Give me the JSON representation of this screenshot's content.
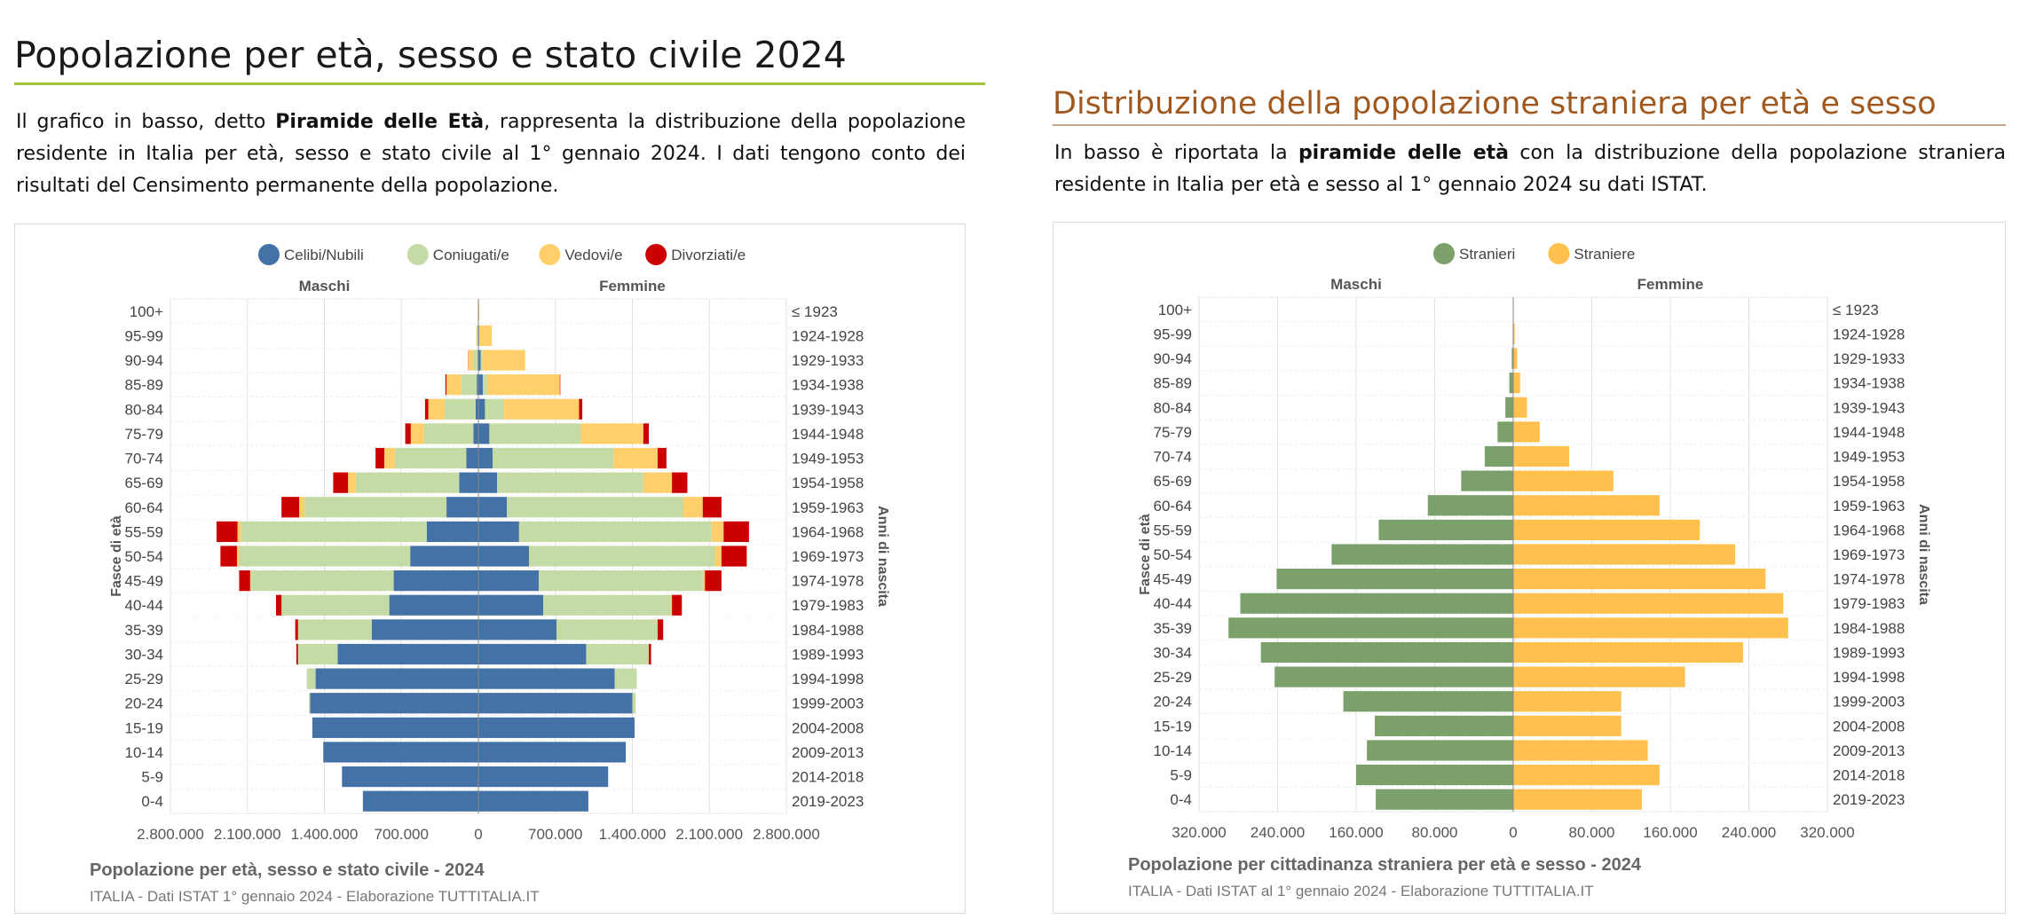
{
  "left": {
    "heading": "Popolazione per età, sesso e stato civile 2024",
    "intro": {
      "t1": "Il grafico in basso, detto ",
      "b1": "Piramide delle Età",
      "t2": ", rappresenta la distribuzione della popolazione residente in Italia per età, sesso e stato civile al 1° gennaio 2024. I dati tengono conto dei risultati del Censimento permanente della popolazione."
    }
  },
  "right": {
    "heading": "Distribuzione della popolazione straniera per età e sesso",
    "intro": {
      "t1": "In basso è riportata la ",
      "b1": "piramide delle età",
      "t2": " con la distribuzione della popolazione straniera residente in Italia per età e sesso al 1° gennaio 2024 su dati ISTAT."
    }
  },
  "chart_data": [
    {
      "type": "bar",
      "orientation": "horizontal-pyramid",
      "stacked": true,
      "title": "Popolazione per età, sesso e stato civile - 2024",
      "subtitle": "ITALIA - Dati ISTAT 1° gennaio 2024 - Elaborazione TUTTITALIA.IT",
      "group_labels": [
        "Maschi",
        "Femmine"
      ],
      "ylabel_left": "Fasce di età",
      "ylabel_right": "Anni di nascita",
      "categories": [
        "100+",
        "95-99",
        "90-94",
        "85-89",
        "80-84",
        "75-79",
        "70-74",
        "65-69",
        "60-64",
        "55-59",
        "50-54",
        "45-49",
        "40-44",
        "35-39",
        "30-34",
        "25-29",
        "20-24",
        "15-19",
        "10-14",
        "5-9",
        "0-4"
      ],
      "birth_years": [
        "≤ 1923",
        "1924-1928",
        "1929-1933",
        "1934-1938",
        "1939-1943",
        "1944-1948",
        "1949-1953",
        "1954-1958",
        "1959-1963",
        "1964-1968",
        "1969-1973",
        "1974-1978",
        "1979-1983",
        "1984-1988",
        "1989-1993",
        "1994-1998",
        "1999-2003",
        "2004-2008",
        "2009-2013",
        "2014-2018",
        "2019-2023"
      ],
      "xlim": [
        -2800000,
        2800000
      ],
      "xticks": [
        "2.800.000",
        "2.100.000",
        "1.400.000",
        "700.000",
        "0",
        "700.000",
        "1.400.000",
        "2.100.000",
        "2.800.000"
      ],
      "legend_position": "top",
      "grid": true,
      "series": [
        {
          "name": "Celibi/Nubili",
          "color": "#4472a6",
          "male": [
            1000,
            4000,
            7000,
            15000,
            25000,
            45000,
            110000,
            175000,
            290000,
            470000,
            620000,
            770000,
            810000,
            970000,
            1280000,
            1480000,
            1530000,
            1510000,
            1410000,
            1240000,
            1050000
          ],
          "female": [
            2000,
            7000,
            20000,
            40000,
            60000,
            100000,
            130000,
            170000,
            260000,
            370000,
            460000,
            550000,
            590000,
            710000,
            980000,
            1240000,
            1400000,
            1420000,
            1340000,
            1180000,
            1000000
          ]
        },
        {
          "name": "Coniugati/e",
          "color": "#c5dba5",
          "male": [
            2000,
            8000,
            40000,
            140000,
            280000,
            450000,
            650000,
            940000,
            1290000,
            1690000,
            1560000,
            1300000,
            980000,
            670000,
            360000,
            80000,
            10000,
            0,
            0,
            0,
            0
          ],
          "female": [
            1000,
            5000,
            15000,
            40000,
            175000,
            830000,
            1100000,
            1330000,
            1600000,
            1750000,
            1690000,
            1490000,
            1160000,
            920000,
            570000,
            200000,
            30000,
            0,
            0,
            0,
            0
          ]
        },
        {
          "name": "Vedovi/e",
          "color": "#ffcf6b",
          "male": [
            1000,
            7000,
            45000,
            135000,
            150000,
            120000,
            95000,
            70000,
            50000,
            30000,
            15000,
            5000,
            0,
            0,
            0,
            0,
            0,
            0,
            0,
            0,
            0
          ],
          "female": [
            5000,
            110000,
            390000,
            660000,
            680000,
            570000,
            400000,
            260000,
            180000,
            110000,
            60000,
            20000,
            10000,
            0,
            0,
            0,
            0,
            0,
            0,
            0,
            0
          ]
        },
        {
          "name": "Divorziati/e",
          "color": "#cc0000",
          "male": [
            0,
            0,
            2000,
            10000,
            30000,
            50000,
            80000,
            135000,
            160000,
            190000,
            150000,
            100000,
            50000,
            25000,
            15000,
            0,
            0,
            0,
            0,
            0,
            0
          ],
          "female": [
            0,
            0,
            0,
            5000,
            30000,
            50000,
            80000,
            140000,
            170000,
            230000,
            230000,
            150000,
            90000,
            50000,
            20000,
            0,
            0,
            0,
            0,
            0,
            0
          ]
        }
      ]
    },
    {
      "type": "bar",
      "orientation": "horizontal-pyramid",
      "title": "Popolazione per cittadinanza straniera per età e sesso - 2024",
      "subtitle": "ITALIA - Dati ISTAT al 1° gennaio 2024 - Elaborazione TUTTITALIA.IT",
      "group_labels": [
        "Maschi",
        "Femmine"
      ],
      "ylabel_left": "Fasce di età",
      "ylabel_right": "Anni di nascita",
      "categories": [
        "100+",
        "95-99",
        "90-94",
        "85-89",
        "80-84",
        "75-79",
        "70-74",
        "65-69",
        "60-64",
        "55-59",
        "50-54",
        "45-49",
        "40-44",
        "35-39",
        "30-34",
        "25-29",
        "20-24",
        "15-19",
        "10-14",
        "5-9",
        "0-4"
      ],
      "birth_years": [
        "≤ 1923",
        "1924-1928",
        "1929-1933",
        "1934-1938",
        "1939-1943",
        "1944-1948",
        "1949-1953",
        "1954-1958",
        "1959-1963",
        "1964-1968",
        "1969-1973",
        "1974-1978",
        "1979-1983",
        "1984-1988",
        "1989-1993",
        "1994-1998",
        "1999-2003",
        "2004-2008",
        "2009-2013",
        "2014-2018",
        "2019-2023"
      ],
      "xlim": [
        -320000,
        320000
      ],
      "xticks": [
        "320.000",
        "240.000",
        "160.000",
        "80.000",
        "0",
        "80.000",
        "160.000",
        "240.000",
        "320.000"
      ],
      "legend_position": "top",
      "grid": true,
      "series": [
        {
          "name": "Stranieri",
          "color": "#7ba06a",
          "values": [
            0,
            500,
            1500,
            4000,
            8000,
            16000,
            29000,
            53000,
            87000,
            137000,
            185000,
            241000,
            278000,
            290000,
            257000,
            243000,
            173000,
            141000,
            149000,
            160000,
            140000
          ]
        },
        {
          "name": "Straniere",
          "color": "#ffc04d",
          "values": [
            500,
            1500,
            4000,
            7000,
            14000,
            27000,
            57000,
            102000,
            149000,
            190000,
            226000,
            257000,
            275000,
            280000,
            234000,
            175000,
            110000,
            110000,
            137000,
            149000,
            131000
          ]
        }
      ]
    }
  ]
}
